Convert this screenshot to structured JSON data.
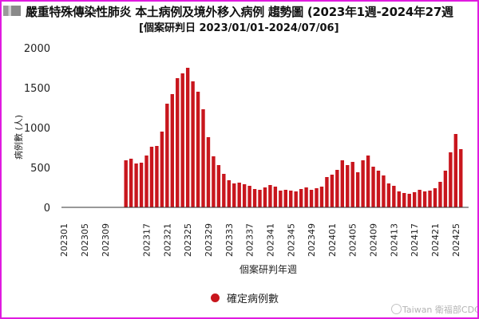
{
  "colors": {
    "bar": "#c8161d",
    "frame": "#e01be0",
    "axis": "#222222"
  },
  "chart_data": {
    "type": "bar",
    "title": "嚴重特殊傳染性肺炎 本土病例及境外移入病例 趨勢圖 (2023年1週-2024年27週",
    "subtitle": "[個案研判日 2023/01/01-2024/07/06]",
    "xlabel": "個案研判年週",
    "ylabel": "病例數 (人)",
    "ylim": [
      0,
      2000
    ],
    "yticks": [
      0,
      500,
      1000,
      1500,
      2000
    ],
    "grid": false,
    "legend_position": "bottom-center",
    "x_tick_labels": [
      "202301",
      "202305",
      "202309",
      "202317",
      "202321",
      "202325",
      "202329",
      "202333",
      "202337",
      "202341",
      "202345",
      "202349",
      "202401",
      "202405",
      "202409",
      "202413",
      "202417",
      "202421",
      "202425"
    ],
    "categories": [
      "202301",
      "202302",
      "202303",
      "202304",
      "202305",
      "202306",
      "202307",
      "202308",
      "202309",
      "202310",
      "202311",
      "202312",
      "202313",
      "202314",
      "202315",
      "202316",
      "202317",
      "202318",
      "202319",
      "202320",
      "202321",
      "202322",
      "202323",
      "202324",
      "202325",
      "202326",
      "202327",
      "202328",
      "202329",
      "202330",
      "202331",
      "202332",
      "202333",
      "202334",
      "202335",
      "202336",
      "202337",
      "202338",
      "202339",
      "202340",
      "202341",
      "202342",
      "202343",
      "202344",
      "202345",
      "202346",
      "202347",
      "202348",
      "202349",
      "202350",
      "202351",
      "202352",
      "202401",
      "202402",
      "202403",
      "202404",
      "202405",
      "202406",
      "202407",
      "202408",
      "202409",
      "202410",
      "202411",
      "202412",
      "202413",
      "202414",
      "202415",
      "202416",
      "202417",
      "202418",
      "202419",
      "202420",
      "202421",
      "202422",
      "202423",
      "202424",
      "202425",
      "202426",
      "202427"
    ],
    "series": [
      {
        "name": "確定病例數",
        "values": [
          0,
          0,
          0,
          0,
          0,
          0,
          0,
          0,
          0,
          0,
          0,
          0,
          590,
          610,
          550,
          560,
          650,
          760,
          770,
          950,
          1300,
          1420,
          1620,
          1680,
          1750,
          1580,
          1450,
          1230,
          880,
          640,
          530,
          420,
          340,
          300,
          310,
          290,
          270,
          230,
          220,
          250,
          280,
          260,
          210,
          220,
          210,
          200,
          230,
          250,
          220,
          240,
          260,
          380,
          410,
          470,
          590,
          530,
          570,
          440,
          590,
          650,
          510,
          460,
          400,
          300,
          270,
          200,
          180,
          170,
          190,
          220,
          200,
          210,
          240,
          320,
          460,
          690,
          920,
          730,
          0
        ]
      }
    ]
  },
  "watermark": "Taiwan 衛福部CDC"
}
